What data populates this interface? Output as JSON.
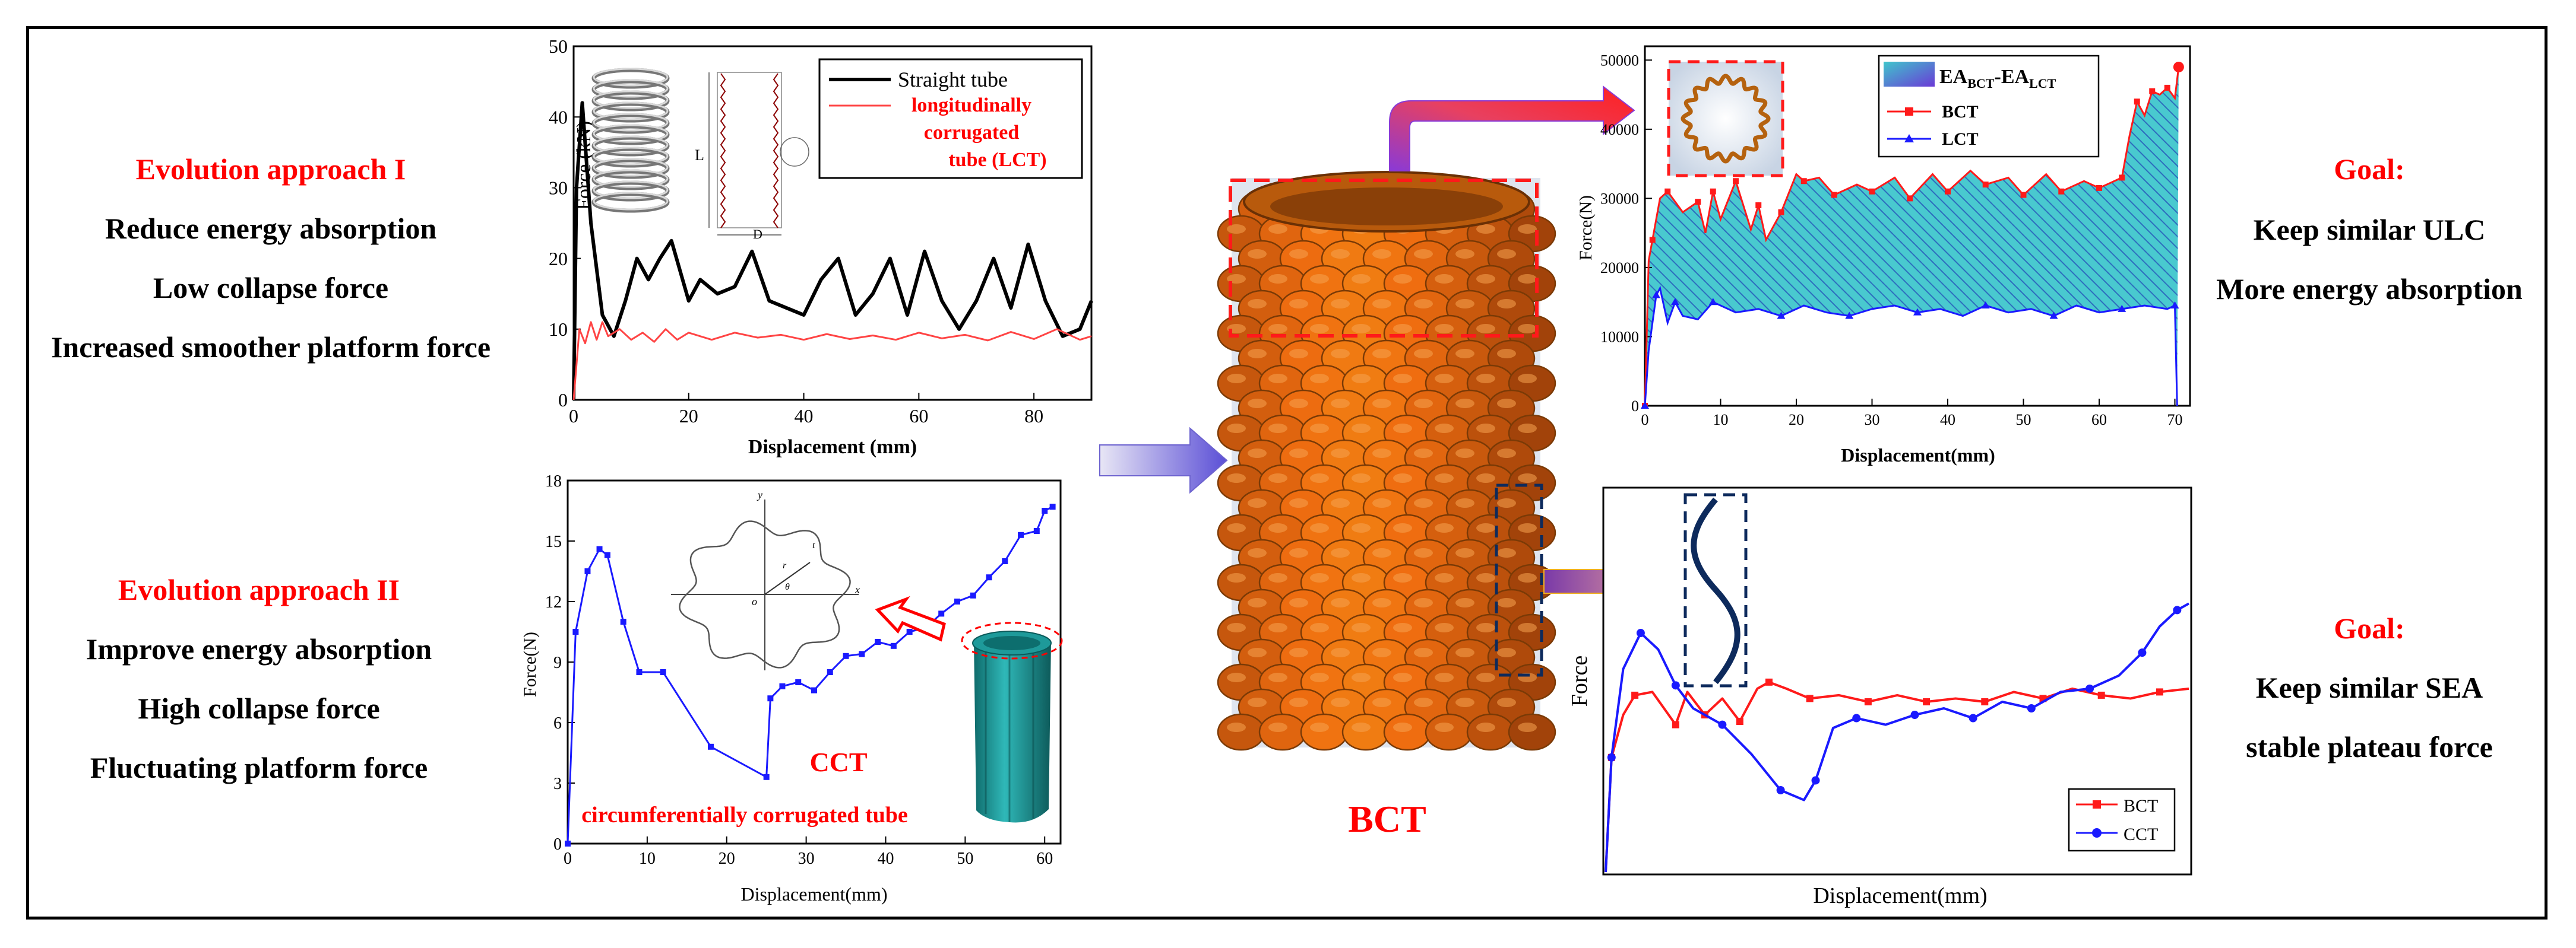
{
  "left_panel": {
    "approach1": {
      "title": "Evolution approach I",
      "lines": [
        "Reduce energy absorption",
        "Low collapse force",
        "Increased smoother platform force"
      ]
    },
    "approach2": {
      "title": "Evolution approach II",
      "lines": [
        "Improve energy absorption",
        "High collapse force",
        "Fluctuating platform force"
      ]
    }
  },
  "right_panel": {
    "goal1": {
      "title": "Goal:",
      "lines": [
        "Keep similar ULC",
        "More energy absorption"
      ]
    },
    "goal2": {
      "title": "Goal:",
      "lines": [
        "Keep similar SEA",
        "stable plateau  force"
      ]
    }
  },
  "center": {
    "label": "BCT"
  },
  "colors": {
    "red": "#ff0000",
    "blue": "#1a1aff",
    "teal": "#2bb5b8",
    "orange": "#c8630f",
    "navy": "#0d2a5c"
  },
  "chart_data": [
    {
      "type": "line",
      "id": "chart1",
      "title": "",
      "xlabel": "Displacement (mm)",
      "ylabel": "Force (kN)",
      "xlim": [
        0,
        90
      ],
      "ylim": [
        0,
        50
      ],
      "xticks": [
        "0",
        "20",
        "40",
        "60",
        "80"
      ],
      "yticks": [
        "0",
        "10",
        "20",
        "30",
        "40",
        "50"
      ],
      "series": [
        {
          "name": "Straight tube",
          "color": "#000000",
          "x": [
            0,
            0.5,
            1.5,
            3,
            5,
            7,
            9,
            11,
            13,
            15,
            17,
            20,
            22,
            25,
            28,
            31,
            34,
            37,
            40,
            43,
            46,
            49,
            52,
            55,
            58,
            61,
            64,
            67,
            70,
            73,
            76,
            79,
            82,
            85,
            88,
            90
          ],
          "y": [
            0,
            30,
            42,
            25,
            12,
            9,
            14,
            20,
            17,
            20,
            22.5,
            14,
            17,
            15,
            16,
            21,
            14,
            13,
            12,
            17,
            20,
            12,
            15,
            20,
            12,
            21,
            14,
            10,
            14,
            20,
            13,
            22,
            14,
            9,
            10,
            14
          ]
        },
        {
          "name": "longitudinally corrugated tube (LCT)",
          "color": "#ff4444",
          "x": [
            0,
            1,
            2,
            3,
            4,
            5,
            6,
            8,
            10,
            12,
            14,
            16,
            18,
            20,
            24,
            28,
            32,
            36,
            40,
            44,
            48,
            52,
            56,
            60,
            64,
            68,
            72,
            76,
            80,
            84,
            88,
            90
          ],
          "y": [
            0,
            10,
            8,
            11,
            8.5,
            11,
            9,
            10,
            8.5,
            9.5,
            8.2,
            10,
            8.5,
            9.5,
            8.5,
            9.5,
            8.8,
            9.2,
            8.5,
            9.3,
            8.6,
            9.1,
            8.5,
            9.5,
            8.7,
            9.2,
            8.4,
            9.6,
            8.6,
            10,
            8.5,
            9
          ]
        }
      ],
      "legend": {
        "items": [
          "Straight tube",
          "longitudinally",
          "corrugated",
          "tube (LCT)"
        ],
        "position": "top-right"
      },
      "inset_labels": [
        "L",
        "D"
      ]
    },
    {
      "type": "line",
      "id": "chart2",
      "xlabel": "Displacement(mm)",
      "ylabel": "Force(N)",
      "xlim": [
        0,
        62
      ],
      "ylim": [
        0,
        18
      ],
      "xticks": [
        "0",
        "10",
        "20",
        "30",
        "40",
        "50",
        "60"
      ],
      "yticks": [
        "0",
        "3",
        "6",
        "9",
        "12",
        "15",
        "18"
      ],
      "series": [
        {
          "name": "CCT",
          "color": "#1a1aff",
          "x": [
            0,
            1,
            2.5,
            4,
            5,
            7,
            9,
            12,
            18,
            25,
            25.5,
            27,
            29,
            31,
            33,
            35,
            37,
            39,
            41,
            43,
            45,
            47,
            49,
            51,
            53,
            55,
            57,
            59,
            60,
            61
          ],
          "y": [
            0,
            10.5,
            13.5,
            14.6,
            14.3,
            11,
            8.5,
            8.5,
            4.8,
            3.3,
            7.2,
            7.8,
            8,
            7.6,
            8.5,
            9.3,
            9.4,
            10,
            9.8,
            10.5,
            10.7,
            11.4,
            12,
            12.3,
            13.2,
            14,
            15.3,
            15.5,
            16.5,
            16.7
          ]
        }
      ],
      "annotations": [
        "CCT",
        "circumferentially corrugated tube"
      ],
      "polar_labels": [
        "y",
        "x",
        "o",
        "r",
        "θ",
        "t"
      ]
    },
    {
      "type": "area",
      "id": "chart3",
      "xlabel": "Displacement(mm)",
      "ylabel": "Force(N)",
      "xlim": [
        0,
        72
      ],
      "ylim": [
        0,
        52000
      ],
      "xticks": [
        "0",
        "10",
        "20",
        "30",
        "40",
        "50",
        "60",
        "70"
      ],
      "yticks": [
        "0",
        "10000",
        "20000",
        "30000",
        "40000",
        "50000"
      ],
      "legend": {
        "items": [
          "EA",
          "BCT",
          "LCT"
        ],
        "fill_label": "EA",
        "sub_bct": "BCT",
        "sub_lct": "LCT",
        "sep": "-"
      },
      "series": [
        {
          "name": "BCT",
          "color": "#ff1a1a",
          "x": [
            0,
            0.5,
            1,
            2,
            3,
            5,
            7,
            8,
            9,
            10,
            12,
            14,
            15,
            16,
            18,
            20,
            21,
            23,
            25,
            28,
            30,
            33,
            35,
            38,
            40,
            43,
            45,
            48,
            50,
            53,
            55,
            58,
            60,
            62,
            63,
            64,
            65,
            66,
            67,
            68,
            69,
            70,
            70.5
          ],
          "y": [
            0,
            21000,
            24000,
            30000,
            31000,
            28000,
            29500,
            25000,
            31000,
            27000,
            32500,
            25500,
            29000,
            24000,
            28000,
            33500,
            32500,
            33000,
            30500,
            32000,
            31000,
            33000,
            30000,
            33500,
            31000,
            34000,
            32000,
            33000,
            30500,
            33500,
            31000,
            32500,
            31500,
            32500,
            33000,
            39000,
            44000,
            42000,
            45500,
            45000,
            46000,
            44500,
            49000
          ]
        },
        {
          "name": "LCT",
          "color": "#1a1aff",
          "x": [
            0,
            0.5,
            1,
            1.5,
            2,
            3,
            4,
            5,
            7,
            9,
            12,
            15,
            18,
            21,
            24,
            27,
            30,
            33,
            36,
            39,
            42,
            45,
            48,
            51,
            54,
            57,
            60,
            63,
            66,
            69,
            70,
            70.3
          ],
          "y": [
            0,
            8000,
            12000,
            16000,
            17000,
            12000,
            15000,
            13000,
            12500,
            15000,
            13500,
            14000,
            13000,
            14500,
            13500,
            13000,
            14000,
            14500,
            13500,
            14000,
            13000,
            14500,
            13500,
            14000,
            13000,
            14500,
            13500,
            14000,
            14500,
            14000,
            14500,
            0
          ]
        }
      ]
    },
    {
      "type": "line",
      "id": "chart4",
      "xlabel": "Displacement(mm)",
      "ylabel": "Force",
      "xlim": [
        0,
        1
      ],
      "ylim": [
        0,
        1
      ],
      "series": [
        {
          "name": "BCT",
          "color": "#ff1a1a",
          "x": [
            0,
            0.01,
            0.03,
            0.05,
            0.08,
            0.12,
            0.14,
            0.17,
            0.2,
            0.23,
            0.26,
            0.28,
            0.31,
            0.35,
            0.4,
            0.45,
            0.5,
            0.55,
            0.6,
            0.65,
            0.7,
            0.75,
            0.8,
            0.85,
            0.9,
            0.95,
            1.0
          ],
          "y": [
            0,
            0.35,
            0.48,
            0.54,
            0.55,
            0.45,
            0.55,
            0.48,
            0.53,
            0.46,
            0.56,
            0.58,
            0.56,
            0.53,
            0.54,
            0.52,
            0.54,
            0.52,
            0.53,
            0.52,
            0.55,
            0.53,
            0.56,
            0.54,
            0.53,
            0.55,
            0.56
          ]
        },
        {
          "name": "CCT",
          "color": "#1a1aff",
          "x": [
            0,
            0.01,
            0.03,
            0.06,
            0.09,
            0.12,
            0.15,
            0.2,
            0.25,
            0.3,
            0.34,
            0.36,
            0.39,
            0.43,
            0.48,
            0.53,
            0.58,
            0.63,
            0.68,
            0.73,
            0.78,
            0.83,
            0.88,
            0.92,
            0.95,
            0.98,
            1.0
          ],
          "y": [
            0,
            0.35,
            0.62,
            0.73,
            0.68,
            0.57,
            0.5,
            0.45,
            0.36,
            0.25,
            0.22,
            0.28,
            0.44,
            0.47,
            0.45,
            0.48,
            0.5,
            0.47,
            0.52,
            0.5,
            0.55,
            0.56,
            0.6,
            0.67,
            0.75,
            0.8,
            0.82
          ]
        }
      ],
      "legend": {
        "items": [
          "BCT",
          "CCT"
        ],
        "position": "bottom-right"
      }
    }
  ]
}
